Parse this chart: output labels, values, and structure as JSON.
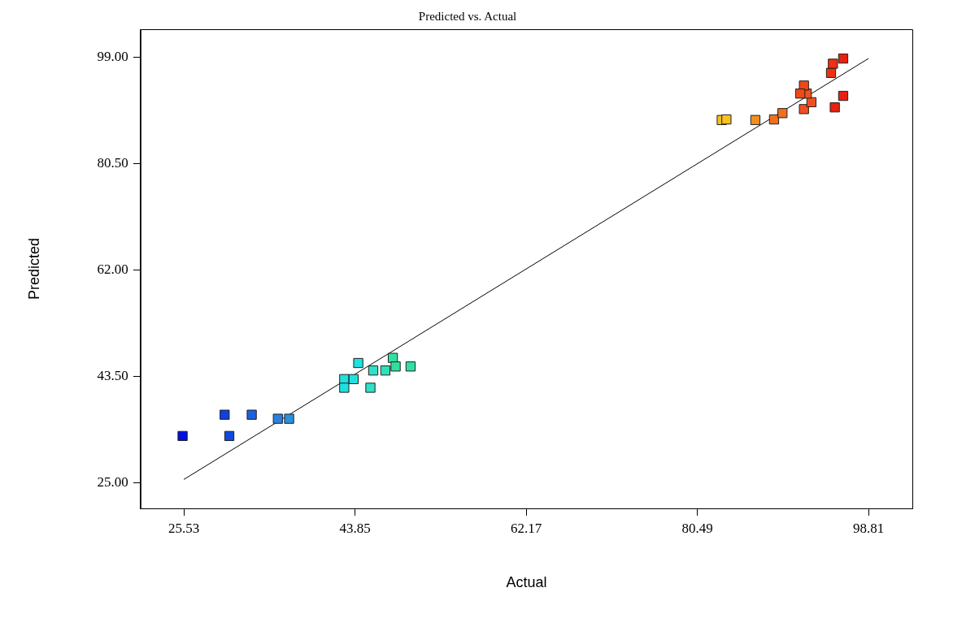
{
  "chart_data": {
    "type": "scatter",
    "title": "Predicted vs. Actual",
    "xlabel": "Actual",
    "ylabel": "Predicted",
    "xlim": [
      20.9,
      103.5
    ],
    "ylim": [
      20.5,
      103.9
    ],
    "xticks": [
      25.53,
      43.85,
      62.17,
      80.49,
      98.81
    ],
    "yticks": [
      {
        "value": 25,
        "label": "25.00"
      },
      {
        "value": 43.5,
        "label": "43.50"
      },
      {
        "value": 62,
        "label": "62.00"
      },
      {
        "value": 80.5,
        "label": "80.50"
      },
      {
        "value": 99,
        "label": "99.00"
      }
    ],
    "grid": false,
    "legend": false,
    "marker": "square",
    "series": [
      {
        "type": "line",
        "color": "#000000",
        "line_style": "solid",
        "marker": "none",
        "x": [
          25.53,
          98.81
        ],
        "values": [
          25.53,
          98.81
        ]
      },
      {
        "type": "scatter",
        "x": [
          25.4,
          29.9,
          30.4,
          32.8,
          35.6,
          36.8,
          42.7,
          43.7,
          42.7,
          44.2,
          45.5,
          45.8,
          47.1,
          47.9,
          48.2,
          49.8,
          83.1,
          83.6,
          86.7,
          88.7,
          89.6,
          91.9,
          92.7,
          92.2,
          91.9,
          91.5,
          95.2,
          96.1,
          94.8,
          95.0,
          96.1
        ],
        "values": [
          33.1,
          36.8,
          33.1,
          36.8,
          36.1,
          36.1,
          43.0,
          43.0,
          41.5,
          45.8,
          41.5,
          44.5,
          44.5,
          46.7,
          45.2,
          45.2,
          88.1,
          88.2,
          88.1,
          88.2,
          89.3,
          90.0,
          91.2,
          92.7,
          94.1,
          92.7,
          90.3,
          92.3,
          96.3,
          97.9,
          98.8
        ],
        "colors": [
          "#0010e0",
          "#1040e0",
          "#1048e0",
          "#2060e0",
          "#2a80e0",
          "#2a90e0",
          "#20e0e0",
          "#20e0e0",
          "#20e0e0",
          "#20e0e0",
          "#30e0c8",
          "#30e0c8",
          "#30e0b8",
          "#30e0a0",
          "#30e0a0",
          "#30e0a0",
          "#f8c020",
          "#f8c020",
          "#f09020",
          "#f07020",
          "#f07020",
          "#f05020",
          "#f05020",
          "#f05020",
          "#f04818",
          "#f04818",
          "#e82010",
          "#e82010",
          "#f03010",
          "#f03010",
          "#e82010"
        ]
      }
    ]
  }
}
